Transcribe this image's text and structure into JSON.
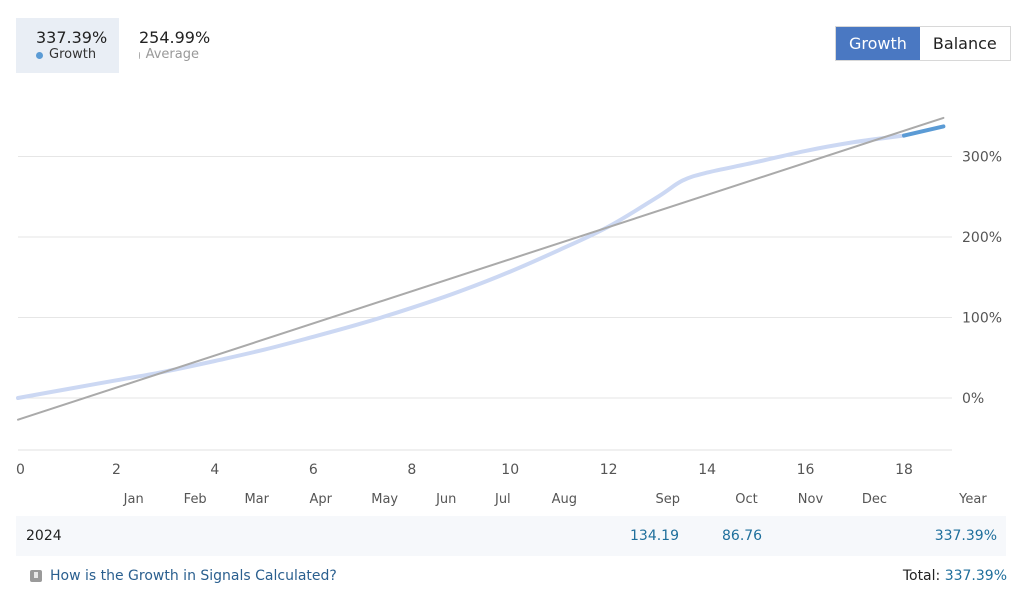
{
  "legend": {
    "growth": {
      "value": "337.39%",
      "label": "Growth",
      "color": "#5b9bd5"
    },
    "average": {
      "value": "254.99%",
      "label": "Average",
      "color": "#aaaaaa"
    }
  },
  "toggle": {
    "growth_label": "Growth",
    "balance_label": "Balance",
    "active": "Growth"
  },
  "chart_data": {
    "type": "line",
    "x_ticks": [
      "0",
      "2",
      "4",
      "6",
      "8",
      "10",
      "12",
      "14",
      "16",
      "18"
    ],
    "y_ticks": [
      "0%",
      "100%",
      "200%",
      "300%"
    ],
    "month_labels": [
      "Jan",
      "Feb",
      "Mar",
      "Apr",
      "May",
      "Jun",
      "Jul",
      "Aug",
      "Sep",
      "Oct",
      "Nov",
      "Dec",
      "Year"
    ],
    "xlim": [
      0,
      19
    ],
    "ylim": [
      -65,
      350
    ],
    "series": [
      {
        "name": "Growth",
        "color": "#ccd8f3",
        "x": [
          0,
          1,
          2,
          3,
          4,
          5,
          6,
          7,
          8,
          9,
          10,
          11,
          12,
          13,
          13.5,
          14,
          15,
          16,
          17,
          18
        ],
        "y": [
          0,
          11,
          22,
          33,
          46,
          60,
          76,
          93,
          112,
          133,
          157,
          184,
          213,
          250,
          270,
          280,
          293,
          307,
          318,
          326
        ]
      },
      {
        "name": "Growth (latest)",
        "color": "#5b9bd5",
        "x": [
          18,
          18.8
        ],
        "y": [
          326,
          337.39
        ]
      },
      {
        "name": "Average",
        "color": "#aaaaaa",
        "x": [
          0,
          18.8
        ],
        "y": [
          -27,
          348
        ]
      }
    ]
  },
  "table": {
    "year": "2024",
    "cells": [
      {
        "month": "Sep",
        "value": "134.19"
      },
      {
        "month": "Oct",
        "value": "86.76"
      },
      {
        "month": "Year",
        "value": "337.39%"
      }
    ]
  },
  "footer": {
    "link_text": "How is the Growth in Signals Calculated?",
    "total_label": "Total:",
    "total_value": "337.39%"
  }
}
